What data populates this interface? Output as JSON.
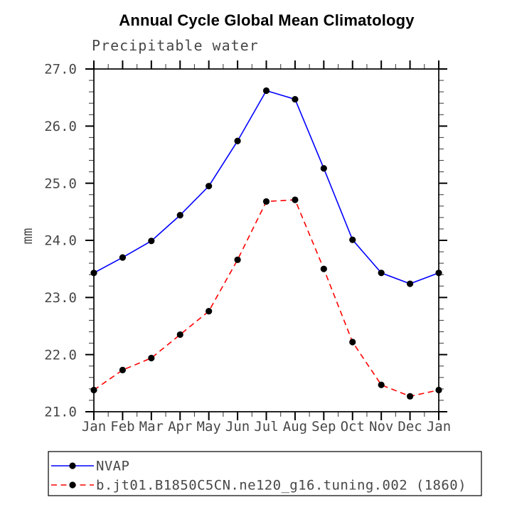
{
  "title": "Annual Cycle Global Mean Climatology",
  "subtitle": "Precipitable water",
  "chart_data": {
    "type": "line",
    "x_categories": [
      "Jan",
      "Feb",
      "Mar",
      "Apr",
      "May",
      "Jun",
      "Jul",
      "Aug",
      "Sep",
      "Oct",
      "Nov",
      "Dec",
      "Jan"
    ],
    "ylabel": "mm",
    "ylim": [
      21.0,
      27.0
    ],
    "ytick_labels": [
      "21.0",
      "22.0",
      "23.0",
      "24.0",
      "25.0",
      "26.0",
      "27.0"
    ],
    "ytick_values": [
      21.0,
      22.0,
      23.0,
      24.0,
      25.0,
      26.0,
      27.0
    ],
    "y_minor_step": 0.2,
    "x_minor_per_interval": 1,
    "grid": false,
    "legend_position": "bottom-left",
    "series": [
      {
        "name": "NVAP",
        "color": "#0000ff",
        "line_style": "solid",
        "marker": "black-circle",
        "values": [
          23.43,
          23.7,
          23.99,
          24.44,
          24.95,
          25.74,
          26.62,
          26.47,
          25.26,
          24.01,
          23.43,
          23.24,
          23.43
        ]
      },
      {
        "name": "b.jt01.B1850C5CN.ne120_g16.tuning.002 (1860)",
        "color": "#ff0000",
        "line_style": "dashed",
        "marker": "black-circle",
        "values": [
          21.38,
          21.73,
          21.94,
          22.35,
          22.76,
          23.66,
          24.68,
          24.71,
          23.5,
          22.22,
          21.47,
          21.27,
          21.38
        ]
      }
    ]
  },
  "colors": {
    "axis": "#000000",
    "tick_labels": "#474747",
    "marker": "#000000",
    "background": "#ffffff"
  }
}
